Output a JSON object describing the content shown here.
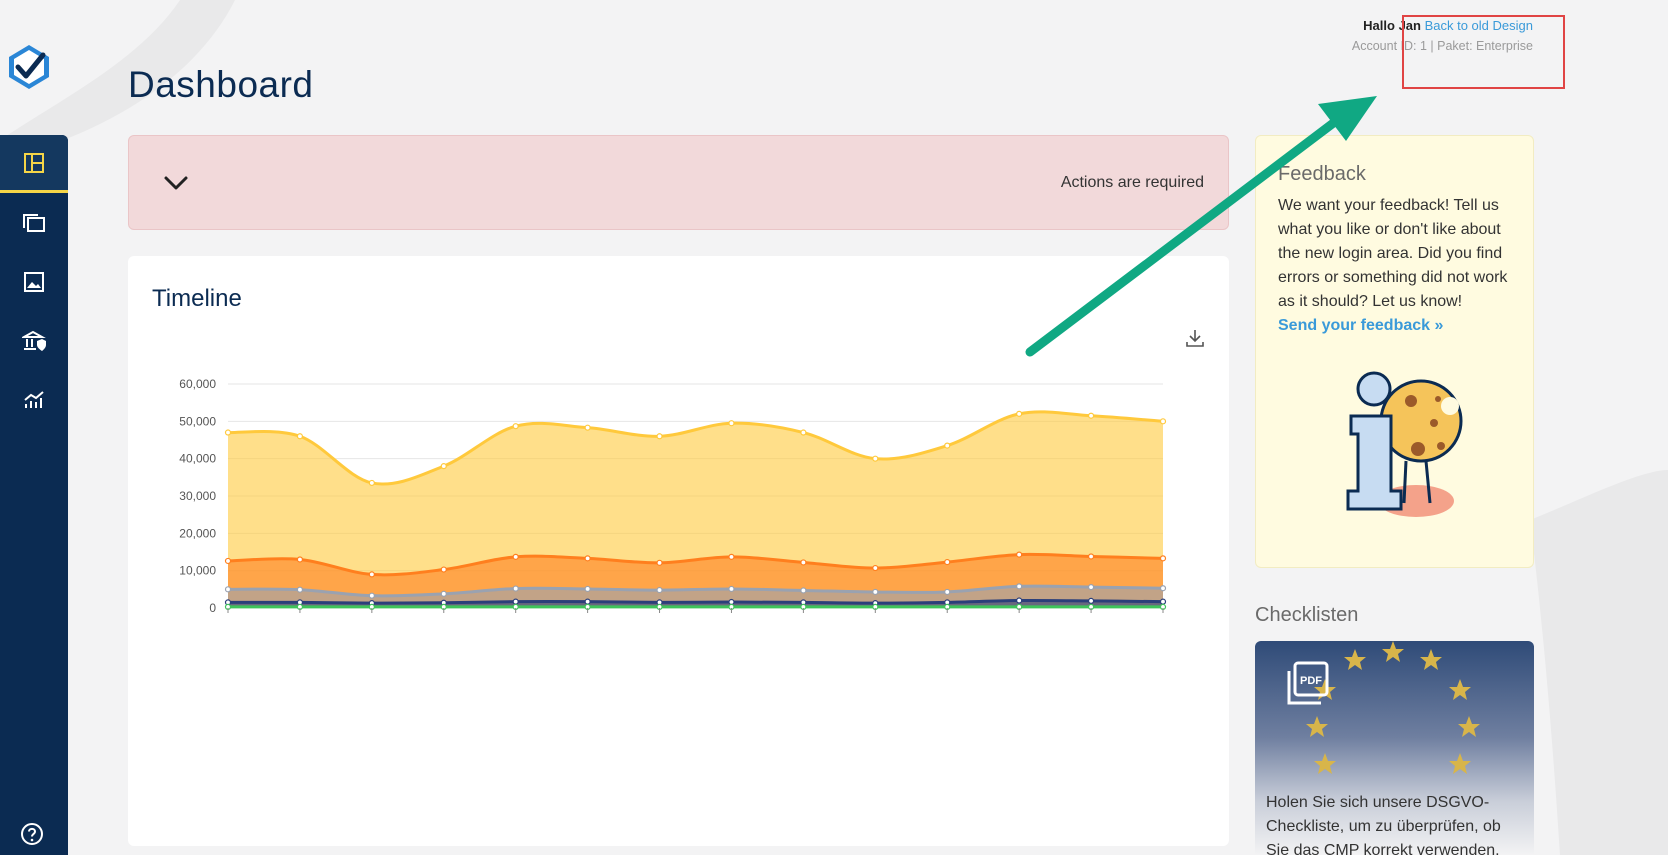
{
  "header": {
    "page_title": "Dashboard",
    "greeting": "Hallo Jan",
    "back_link": "Back to old Design",
    "account_info": "Account ID: 1 | Paket: Enterprise"
  },
  "sidebar": {
    "items": [
      {
        "icon": "dashboard-icon",
        "active": true
      },
      {
        "icon": "folders-icon",
        "active": false
      },
      {
        "icon": "image-icon",
        "active": false
      },
      {
        "icon": "bank-shield-icon",
        "active": false
      },
      {
        "icon": "analytics-icon",
        "active": false
      }
    ],
    "help_icon": "help-icon"
  },
  "alert": {
    "text": "Actions are required",
    "color": "#f2d9da"
  },
  "timeline": {
    "title": "Timeline"
  },
  "chart_data": {
    "type": "area",
    "stacked": true,
    "x": [
      0,
      1,
      2,
      3,
      4,
      5,
      6,
      7,
      8,
      9,
      10,
      11,
      12,
      13
    ],
    "ylim": [
      0,
      60000
    ],
    "yticks": [
      "0",
      "10,000",
      "20,000",
      "30,000",
      "40,000",
      "50,000",
      "60,000"
    ],
    "series": [
      {
        "color": "#3ec45a",
        "values": [
          300,
          300,
          300,
          300,
          300,
          300,
          300,
          300,
          300,
          300,
          300,
          300,
          300,
          300
        ]
      },
      {
        "color": "#2b3f7a",
        "values": [
          1500,
          1500,
          1300,
          1400,
          1700,
          1700,
          1500,
          1600,
          1500,
          1300,
          1500,
          2000,
          1900,
          1700
        ]
      },
      {
        "color": "#9aa2b0",
        "values": [
          5000,
          4900,
          3300,
          3800,
          5200,
          5100,
          4800,
          5100,
          4700,
          4300,
          4300,
          5800,
          5600,
          5300
        ]
      },
      {
        "color": "#ff7f1e",
        "values": [
          12600,
          13000,
          9000,
          10300,
          13700,
          13300,
          12100,
          13700,
          12200,
          10700,
          12300,
          14300,
          13800,
          13300
        ]
      },
      {
        "color": "#ffc93c",
        "values": [
          47000,
          46000,
          33500,
          38000,
          48700,
          48300,
          46000,
          49500,
          47000,
          40000,
          43500,
          52000,
          51500,
          50000
        ]
      }
    ]
  },
  "feedback": {
    "title": "Feedback",
    "body": "We want your feedback! Tell us what you like or don't like about the new login area. Did you find errors or something did not work as it should? Let us know!",
    "link": "Send your feedback »",
    "color": "#fffbe0"
  },
  "checklisten": {
    "title": "Checklisten",
    "card_text": "Holen Sie sich unsere DSGVO-Checkliste, um zu überprüfen, ob Sie das CMP korrekt verwenden.",
    "pdf_label": "PDF"
  },
  "annotation": {
    "arrow_color": "#10a883",
    "box_color": "#e04444"
  }
}
